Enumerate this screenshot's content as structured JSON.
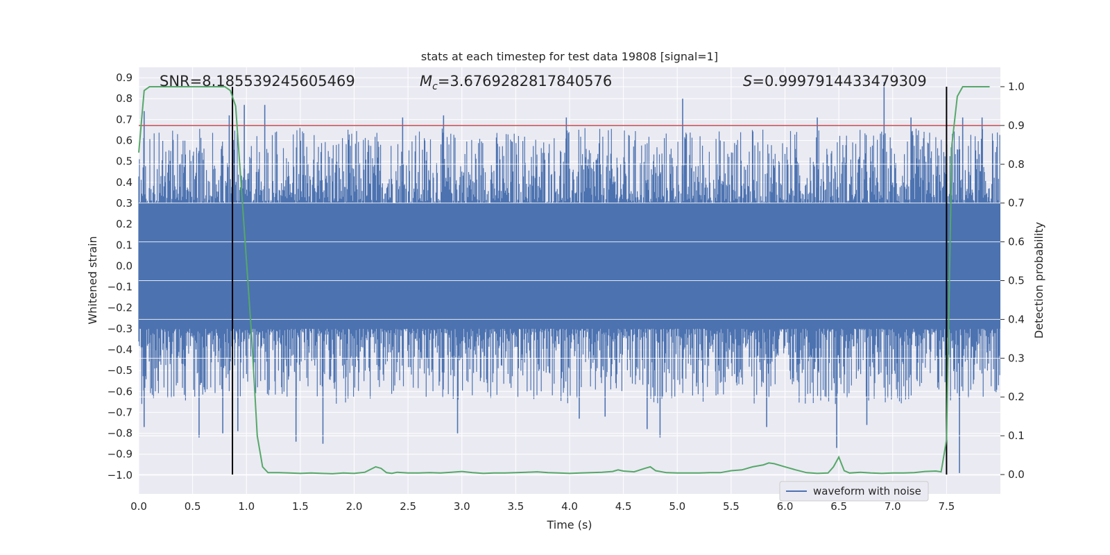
{
  "chart_data": {
    "type": "line",
    "title": "stats at each timestep for test data 19808 [signal=1]",
    "xlabel": "Time (s)",
    "ylabel_left": "Whitened strain",
    "ylabel_right": "Detection probability",
    "xlim": [
      0.0,
      8.0
    ],
    "ylim_left": [
      -1.09,
      0.95
    ],
    "ylim_right": [
      -0.05,
      1.05
    ],
    "xticks": [
      "0.0",
      "0.5",
      "1.0",
      "1.5",
      "2.0",
      "2.5",
      "3.0",
      "3.5",
      "4.0",
      "4.5",
      "5.0",
      "5.5",
      "6.0",
      "6.5",
      "7.0",
      "7.5"
    ],
    "xtick_values": [
      0.0,
      0.5,
      1.0,
      1.5,
      2.0,
      2.5,
      3.0,
      3.5,
      4.0,
      4.5,
      5.0,
      5.5,
      6.0,
      6.5,
      7.0,
      7.5
    ],
    "yticks_left": [
      "0.9",
      "0.8",
      "0.7",
      "0.6",
      "0.5",
      "0.4",
      "0.3",
      "0.2",
      "0.1",
      "0.0",
      "−0.1",
      "−0.2",
      "−0.3",
      "−0.4",
      "−0.5",
      "−0.6",
      "−0.7",
      "−0.8",
      "−0.9",
      "−1.0"
    ],
    "ytick_values_left": [
      0.9,
      0.8,
      0.7,
      0.6,
      0.5,
      0.4,
      0.3,
      0.2,
      0.1,
      0.0,
      -0.1,
      -0.2,
      -0.3,
      -0.4,
      -0.5,
      -0.6,
      -0.7,
      -0.8,
      -0.9,
      -1.0
    ],
    "yticks_right": [
      "1.0",
      "0.9",
      "0.8",
      "0.7",
      "0.6",
      "0.5",
      "0.4",
      "0.3",
      "0.2",
      "0.1",
      "0.0"
    ],
    "ytick_values_right": [
      1.0,
      0.9,
      0.8,
      0.7,
      0.6,
      0.5,
      0.4,
      0.3,
      0.2,
      0.1,
      0.0
    ],
    "annotations": {
      "snr": "SNR=8.185539245605469",
      "mc_symbol": "M",
      "mc_sub": "c",
      "mc_value": "=3.6769282817840576",
      "s_symbol": "S",
      "s_value": "=0.9997914433479309"
    },
    "threshold": {
      "value": 0.9,
      "axis": "right",
      "color": "#c44e52"
    },
    "vlines": [
      0.87,
      7.5
    ],
    "series": [
      {
        "name": "waveform with noise",
        "axis": "left",
        "color": "#4c72b0",
        "peaks_upper": [
          [
            0.05,
            0.74
          ],
          [
            0.56,
            0.55
          ],
          [
            0.84,
            0.72
          ],
          [
            0.98,
            0.77
          ],
          [
            1.17,
            0.77
          ],
          [
            2.45,
            0.71
          ],
          [
            2.83,
            0.72
          ],
          [
            3.97,
            0.71
          ],
          [
            5.05,
            0.8
          ],
          [
            6.3,
            0.71
          ],
          [
            6.92,
            0.88
          ],
          [
            7.17,
            0.71
          ],
          [
            7.65,
            0.71
          ],
          [
            7.83,
            0.71
          ]
        ],
        "peaks_lower": [
          [
            0.05,
            -0.77
          ],
          [
            0.56,
            -0.82
          ],
          [
            0.78,
            -0.8
          ],
          [
            0.92,
            -0.79
          ],
          [
            1.46,
            -0.84
          ],
          [
            1.71,
            -0.85
          ],
          [
            2.96,
            -0.8
          ],
          [
            4.09,
            -0.73
          ],
          [
            4.33,
            -0.72
          ],
          [
            4.72,
            -0.78
          ],
          [
            4.84,
            -0.82
          ],
          [
            5.83,
            -0.77
          ],
          [
            6.48,
            -0.87
          ],
          [
            6.76,
            -0.76
          ],
          [
            7.62,
            -0.99
          ]
        ]
      },
      {
        "name": "detection probability",
        "axis": "right",
        "color": "#55a868",
        "x": [
          0.0,
          0.05,
          0.1,
          0.2,
          0.3,
          0.4,
          0.5,
          0.6,
          0.7,
          0.8,
          0.85,
          0.9,
          0.95,
          1.0,
          1.05,
          1.1,
          1.15,
          1.2,
          1.3,
          1.4,
          1.5,
          1.6,
          1.7,
          1.8,
          1.9,
          2.0,
          2.1,
          2.2,
          2.25,
          2.3,
          2.35,
          2.4,
          2.5,
          2.6,
          2.7,
          2.8,
          2.9,
          3.0,
          3.1,
          3.2,
          3.3,
          3.4,
          3.5,
          3.6,
          3.7,
          3.8,
          3.9,
          4.0,
          4.1,
          4.2,
          4.3,
          4.4,
          4.45,
          4.5,
          4.6,
          4.7,
          4.75,
          4.8,
          4.9,
          5.0,
          5.1,
          5.2,
          5.3,
          5.4,
          5.5,
          5.6,
          5.7,
          5.8,
          5.85,
          5.9,
          6.0,
          6.1,
          6.2,
          6.3,
          6.4,
          6.45,
          6.5,
          6.55,
          6.6,
          6.7,
          6.8,
          6.9,
          7.0,
          7.1,
          7.2,
          7.3,
          7.4,
          7.45,
          7.5,
          7.55,
          7.6,
          7.65,
          7.7,
          7.8,
          7.9
        ],
        "y": [
          0.83,
          0.99,
          1.0,
          1.0,
          1.0,
          1.0,
          1.0,
          1.0,
          1.0,
          1.0,
          0.99,
          0.95,
          0.75,
          0.55,
          0.35,
          0.1,
          0.02,
          0.005,
          0.005,
          0.004,
          0.003,
          0.004,
          0.003,
          0.002,
          0.004,
          0.003,
          0.006,
          0.02,
          0.016,
          0.005,
          0.003,
          0.006,
          0.004,
          0.004,
          0.005,
          0.004,
          0.006,
          0.008,
          0.005,
          0.003,
          0.004,
          0.004,
          0.005,
          0.006,
          0.007,
          0.005,
          0.004,
          0.003,
          0.004,
          0.005,
          0.006,
          0.008,
          0.012,
          0.009,
          0.007,
          0.016,
          0.02,
          0.01,
          0.005,
          0.004,
          0.004,
          0.004,
          0.005,
          0.005,
          0.01,
          0.012,
          0.02,
          0.025,
          0.03,
          0.028,
          0.02,
          0.012,
          0.005,
          0.003,
          0.004,
          0.02,
          0.045,
          0.01,
          0.004,
          0.006,
          0.004,
          0.003,
          0.004,
          0.004,
          0.005,
          0.008,
          0.009,
          0.007,
          0.09,
          0.85,
          0.975,
          1.0,
          1.0,
          1.0,
          1.0
        ]
      }
    ],
    "legend": {
      "label": "waveform with noise",
      "position": "lower-right"
    }
  }
}
